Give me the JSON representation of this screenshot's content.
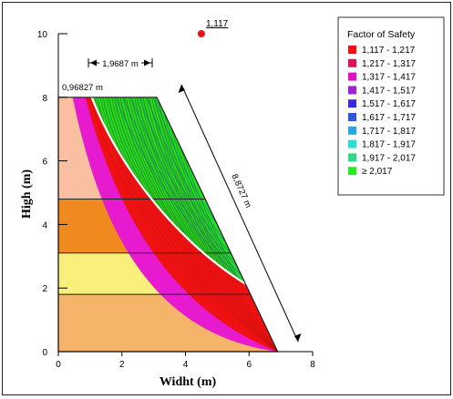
{
  "chart_data": {
    "type": "slope-stability",
    "xlabel": "Widht (m)",
    "ylabel": "High (m)",
    "xlim": [
      0,
      8
    ],
    "ylim": [
      0,
      10
    ],
    "x_ticks": [
      "0",
      "2",
      "4",
      "6",
      "8"
    ],
    "y_ticks": [
      "0",
      "2",
      "4",
      "6",
      "8",
      "10"
    ],
    "slope_profile": [
      [
        0,
        0
      ],
      [
        0,
        8
      ],
      [
        3.1,
        8
      ],
      [
        6.9,
        0
      ]
    ],
    "soil_layers": [
      {
        "y_bottom": 4.8,
        "y_top": 8.0,
        "color": "#f8c0a0"
      },
      {
        "y_bottom": 3.1,
        "y_top": 4.8,
        "color": "#f08a1e"
      },
      {
        "y_bottom": 1.8,
        "y_top": 3.1,
        "color": "#f8f07a"
      },
      {
        "y_bottom": 0.0,
        "y_top": 1.8,
        "color": "#f5b46a"
      }
    ],
    "critical_center": {
      "x": 4.5,
      "y": 10.0,
      "label": "1,117"
    },
    "legend": {
      "title": "Factor of Safety",
      "entries": [
        {
          "label": "1,117 - 1,217",
          "color": "#ee1111"
        },
        {
          "label": "1,217 - 1,317",
          "color": "#e0105a"
        },
        {
          "label": "1,317 - 1,417",
          "color": "#e010c8"
        },
        {
          "label": "1,417 - 1,517",
          "color": "#a020d8"
        },
        {
          "label": "1,517 - 1,617",
          "color": "#3a2ad8"
        },
        {
          "label": "1,617 - 1,717",
          "color": "#2a58d8"
        },
        {
          "label": "1,717 - 1,817",
          "color": "#28a8e0"
        },
        {
          "label": "1,817 - 1,917",
          "color": "#28e0d8"
        },
        {
          "label": "1,917 - 2,017",
          "color": "#30d88a"
        },
        {
          "label": "≥ 2,017",
          "color": "#22ee22"
        }
      ]
    },
    "annotations": {
      "top_width": "1,9687 m",
      "crest_offset": "0,96827 m",
      "slip_length": "8,8727 m"
    }
  }
}
